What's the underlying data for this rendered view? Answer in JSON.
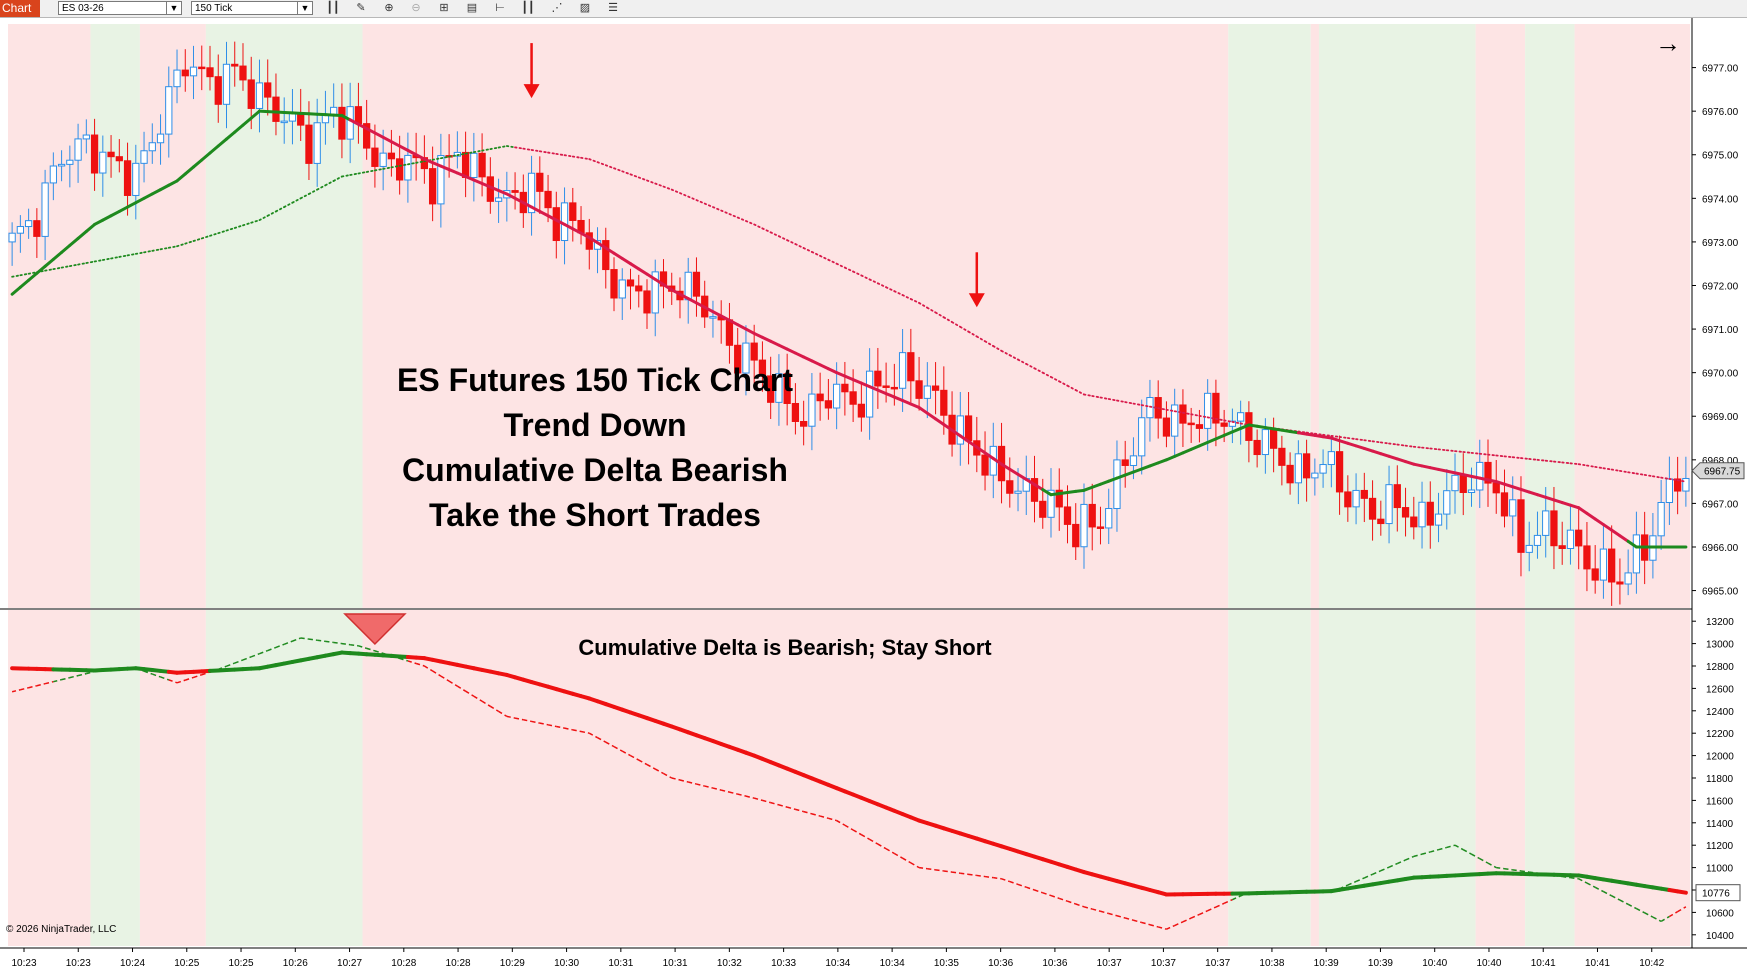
{
  "toolbar": {
    "tab_label": "Chart",
    "instrument": "ES 03-26",
    "interval": "150 Tick",
    "icons": [
      "bar-type-icon",
      "draw-tool-icon",
      "zoom-in-icon",
      "zoom-out-icon",
      "crosshair-icon",
      "data-box-icon",
      "strategy-icon",
      "indicator-icon",
      "drawing-objects-icon",
      "properties-icon",
      "templates-icon"
    ]
  },
  "annotations": {
    "title_lines": [
      "ES Futures 150 Tick Chart",
      "Trend Down",
      "Cumulative Delta Bearish",
      "Take the Short Trades"
    ],
    "subpanel_note": "Cumulative Delta is Bearish; Stay Short",
    "copyright": "© 2026 NinjaTrader, LLC",
    "scroll_arrow": "→"
  },
  "colors": {
    "bg_bear": "#fde4e4",
    "bg_bull": "#e8f3e4",
    "up_candle": "#2e8ee8",
    "down_candle": "#ee1111",
    "ma_bear": "#d81a4a",
    "ma_bull": "#1e8a1e",
    "arrow": "#ee1111",
    "signal_triangle": "#f06a6a"
  },
  "chart_data": [
    {
      "type": "candlestick",
      "title": "ES Futures 150 Tick Chart",
      "ylim": [
        6964.6,
        6978.0
      ],
      "y_ticks": [
        "6977.00",
        "6976.00",
        "6975.00",
        "6974.00",
        "6973.00",
        "6972.00",
        "6971.00",
        "6970.00",
        "6969.00",
        "6968.00",
        "6967.00",
        "6966.00",
        "6965.00"
      ],
      "y_ticks_values": [
        6977,
        6976,
        6975,
        6974,
        6973,
        6972,
        6971,
        6970,
        6969,
        6968,
        6967,
        6966,
        6965
      ],
      "last_price_label": "6967.75",
      "last_price": 6967.75,
      "price_path": [
        [
          0,
          6973.0
        ],
        [
          3,
          6973.6
        ],
        [
          6,
          6975.0
        ],
        [
          9,
          6975.2
        ],
        [
          12,
          6974.8
        ],
        [
          15,
          6974.5
        ],
        [
          18,
          6975.8
        ],
        [
          21,
          6977.2
        ],
        [
          24,
          6976.6
        ],
        [
          27,
          6976.9
        ],
        [
          30,
          6976.3
        ],
        [
          33,
          6975.9
        ],
        [
          36,
          6975.3
        ],
        [
          39,
          6976.0
        ],
        [
          42,
          6975.6
        ],
        [
          45,
          6974.7
        ],
        [
          48,
          6974.9
        ],
        [
          51,
          6974.4
        ],
        [
          54,
          6975.1
        ],
        [
          57,
          6974.4
        ],
        [
          60,
          6973.9
        ],
        [
          63,
          6974.3
        ],
        [
          66,
          6973.5
        ],
        [
          69,
          6973.4
        ],
        [
          72,
          6972.3
        ],
        [
          75,
          6971.8
        ],
        [
          78,
          6971.9
        ],
        [
          81,
          6972.0
        ],
        [
          84,
          6971.6
        ],
        [
          87,
          6970.6
        ],
        [
          90,
          6970.2
        ],
        [
          93,
          6969.5
        ],
        [
          96,
          6968.9
        ],
        [
          99,
          6969.6
        ],
        [
          102,
          6969.3
        ],
        [
          105,
          6969.7
        ],
        [
          108,
          6970.0
        ],
        [
          111,
          6969.6
        ],
        [
          114,
          6968.8
        ],
        [
          117,
          6968.2
        ],
        [
          120,
          6967.6
        ],
        [
          123,
          6967.2
        ],
        [
          126,
          6967.0
        ],
        [
          129,
          6966.4
        ],
        [
          132,
          6966.6
        ],
        [
          135,
          6968.0
        ],
        [
          138,
          6969.2
        ],
        [
          141,
          6968.8
        ],
        [
          144,
          6969.0
        ],
        [
          147,
          6969.0
        ],
        [
          150,
          6968.6
        ],
        [
          153,
          6968.2
        ],
        [
          156,
          6967.6
        ],
        [
          159,
          6968.0
        ],
        [
          162,
          6967.2
        ],
        [
          165,
          6966.8
        ],
        [
          168,
          6967.0
        ],
        [
          171,
          6966.5
        ],
        [
          174,
          6967.2
        ],
        [
          177,
          6967.6
        ],
        [
          180,
          6967.4
        ],
        [
          183,
          6966.1
        ],
        [
          186,
          6966.4
        ],
        [
          189,
          6966.1
        ],
        [
          192,
          6965.5
        ],
        [
          195,
          6965.3
        ],
        [
          198,
          6966.0
        ],
        [
          201,
          6967.3
        ],
        [
          203,
          6967.8
        ]
      ],
      "n_bars": 204,
      "sma_fast": [
        [
          0,
          6971.8
        ],
        [
          10,
          6973.4
        ],
        [
          20,
          6974.4
        ],
        [
          30,
          6976.0
        ],
        [
          40,
          6975.9
        ],
        [
          50,
          6974.9
        ],
        [
          60,
          6974.1
        ],
        [
          70,
          6973.1
        ],
        [
          80,
          6971.9
        ],
        [
          90,
          6970.9
        ],
        [
          100,
          6970.0
        ],
        [
          110,
          6969.2
        ],
        [
          120,
          6967.9
        ],
        [
          126,
          6967.2
        ],
        [
          130,
          6967.3
        ],
        [
          140,
          6968.0
        ],
        [
          150,
          6968.8
        ],
        [
          160,
          6968.5
        ],
        [
          170,
          6967.9
        ],
        [
          180,
          6967.5
        ],
        [
          190,
          6966.9
        ],
        [
          197,
          6966.0
        ],
        [
          203,
          6966.0
        ]
      ],
      "sma_fast_bull_ranges": [
        [
          0,
          40
        ],
        [
          125,
          155
        ],
        [
          196,
          203
        ]
      ],
      "sma_slow": [
        [
          0,
          6972.2
        ],
        [
          20,
          6972.9
        ],
        [
          30,
          6973.5
        ],
        [
          40,
          6974.5
        ],
        [
          60,
          6975.2
        ],
        [
          70,
          6974.9
        ],
        [
          80,
          6974.2
        ],
        [
          90,
          6973.4
        ],
        [
          100,
          6972.5
        ],
        [
          110,
          6971.6
        ],
        [
          120,
          6970.5
        ],
        [
          130,
          6969.5
        ],
        [
          150,
          6968.8
        ],
        [
          170,
          6968.3
        ],
        [
          190,
          6967.9
        ],
        [
          203,
          6967.5
        ]
      ],
      "sma_slow_bull_ranges": [
        [
          0,
          60
        ]
      ],
      "signal_arrows": [
        {
          "bar": 63,
          "price": 6975.3
        },
        {
          "bar": 117,
          "price": 6970.5
        }
      ]
    },
    {
      "type": "line",
      "title": "Cumulative Delta",
      "ylim": [
        10300,
        13300
      ],
      "y_ticks": [
        "13200",
        "13000",
        "12800",
        "12600",
        "12400",
        "12200",
        "12000",
        "11800",
        "11600",
        "11400",
        "11200",
        "11000",
        "10800",
        "10600",
        "10400"
      ],
      "y_ticks_values": [
        13200,
        13000,
        12800,
        12600,
        12400,
        12200,
        12000,
        11800,
        11600,
        11400,
        11200,
        11000,
        10800,
        10600,
        10400
      ],
      "last_value_label": "10776",
      "last_value": 10776,
      "series": [
        {
          "name": "",
          "style": "solid",
          "values": [
            [
              0,
              12780
            ],
            [
              10,
              12760
            ],
            [
              15,
              12780
            ],
            [
              20,
              12740
            ],
            [
              30,
              12780
            ],
            [
              40,
              12920
            ],
            [
              50,
              12870
            ],
            [
              60,
              12720
            ],
            [
              70,
              12510
            ],
            [
              80,
              12260
            ],
            [
              90,
              12000
            ],
            [
              100,
              11710
            ],
            [
              110,
              11420
            ],
            [
              120,
              11190
            ],
            [
              130,
              10960
            ],
            [
              140,
              10760
            ],
            [
              150,
              10770
            ],
            [
              160,
              10790
            ],
            [
              170,
              10910
            ],
            [
              180,
              10950
            ],
            [
              190,
              10930
            ],
            [
              203,
              10776
            ]
          ]
        },
        {
          "name": "",
          "style": "dashed",
          "values": [
            [
              0,
              12570
            ],
            [
              10,
              12750
            ],
            [
              15,
              12780
            ],
            [
              20,
              12650
            ],
            [
              25,
              12770
            ],
            [
              35,
              13050
            ],
            [
              42,
              12980
            ],
            [
              50,
              12800
            ],
            [
              60,
              12350
            ],
            [
              70,
              12200
            ],
            [
              80,
              11800
            ],
            [
              90,
              11620
            ],
            [
              100,
              11420
            ],
            [
              110,
              11000
            ],
            [
              120,
              10900
            ],
            [
              130,
              10650
            ],
            [
              140,
              10450
            ],
            [
              150,
              10780
            ],
            [
              160,
              10780
            ],
            [
              170,
              11100
            ],
            [
              175,
              11200
            ],
            [
              180,
              11000
            ],
            [
              190,
              10900
            ],
            [
              200,
              10520
            ],
            [
              203,
              10650
            ]
          ]
        }
      ],
      "solid_bull_ranges": [
        [
          5,
          18
        ],
        [
          24,
          47
        ],
        [
          148,
          200
        ]
      ],
      "signal_triangle_bar": 44
    }
  ],
  "time_axis": {
    "labels": [
      "10:23",
      "10:23",
      "10:24",
      "10:25",
      "10:25",
      "10:26",
      "10:27",
      "10:28",
      "10:28",
      "10:29",
      "10:30",
      "10:31",
      "10:31",
      "10:32",
      "10:33",
      "10:34",
      "10:34",
      "10:35",
      "10:36",
      "10:36",
      "10:37",
      "10:37",
      "10:37",
      "10:38",
      "10:39",
      "10:39",
      "10:40",
      "10:40",
      "10:41",
      "10:41",
      "10:42"
    ]
  },
  "background_regions": [
    {
      "state": "bear",
      "from": 0,
      "to": 10
    },
    {
      "state": "bull",
      "from": 10,
      "to": 16
    },
    {
      "state": "bear",
      "from": 16,
      "to": 24
    },
    {
      "state": "bull",
      "from": 24,
      "to": 43
    },
    {
      "state": "bear",
      "from": 43,
      "to": 148
    },
    {
      "state": "bull",
      "from": 148,
      "to": 158
    },
    {
      "state": "bear",
      "from": 158,
      "to": 159
    },
    {
      "state": "bull",
      "from": 159,
      "to": 178
    },
    {
      "state": "bear",
      "from": 178,
      "to": 184
    },
    {
      "state": "bull",
      "from": 184,
      "to": 190
    },
    {
      "state": "bear",
      "from": 190,
      "to": 204
    }
  ]
}
